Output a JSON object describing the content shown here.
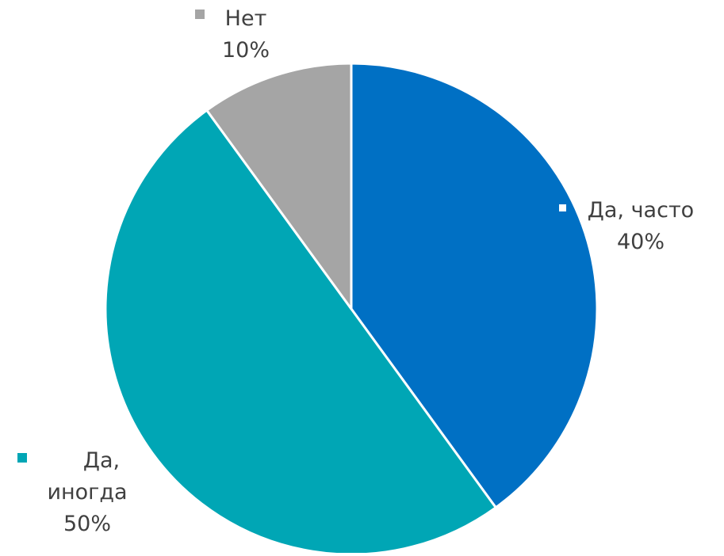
{
  "chart_data": {
    "type": "pie",
    "slices": [
      {
        "name": "Да, часто",
        "value": 40,
        "label": "40%",
        "color": "#0070C4"
      },
      {
        "name": "Да, иногда",
        "value": 50,
        "label": "50%",
        "color": "#00A6B5"
      },
      {
        "name": "Нет",
        "value": 10,
        "label": "10%",
        "color": "#A5A5A5"
      }
    ],
    "label_lines": [
      [
        "Да, часто"
      ],
      [
        "Да,",
        "иногда"
      ],
      [
        "Нет"
      ]
    ],
    "start_angle_deg": 0,
    "direction": "clockwise",
    "legend": "none",
    "data_labels": "category-name-and-percent"
  }
}
